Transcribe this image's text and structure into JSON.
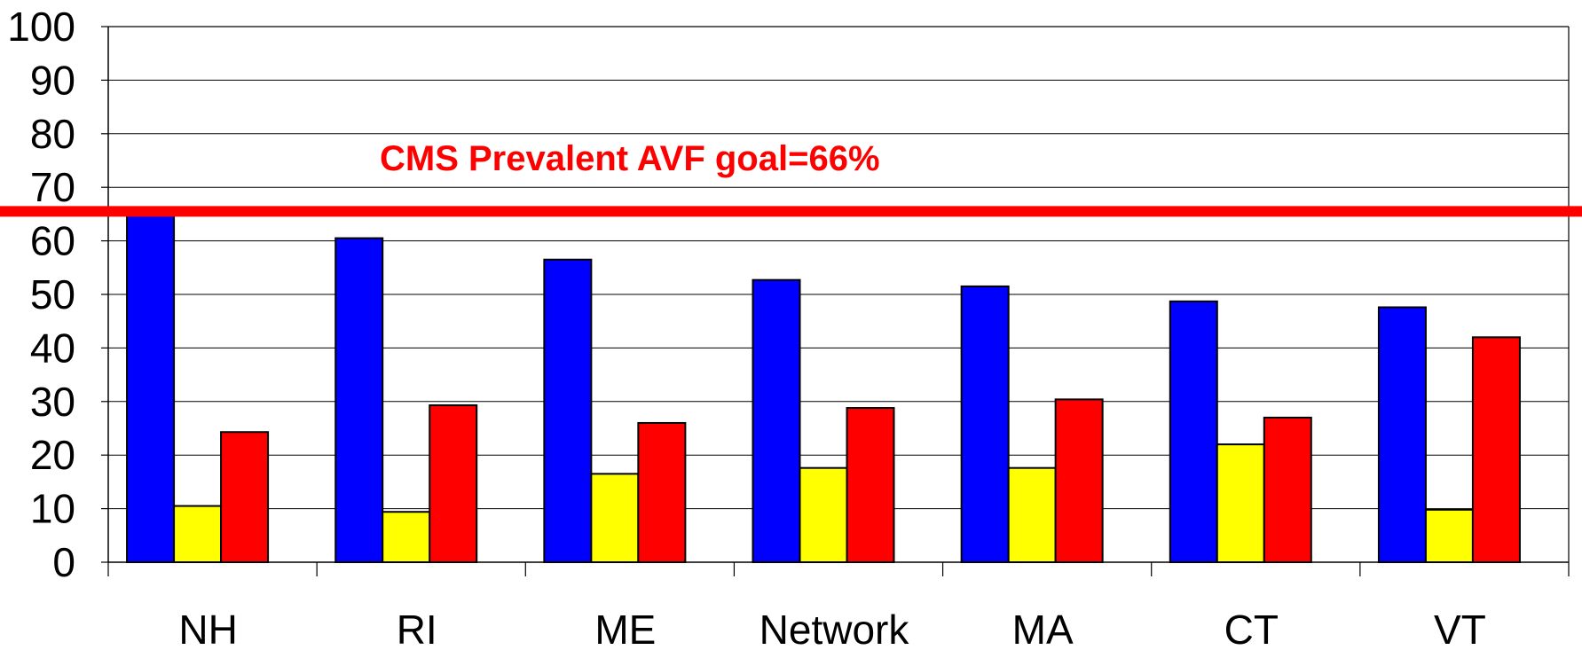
{
  "chart_data": {
    "type": "bar",
    "categories": [
      "NH",
      "RI",
      "ME",
      "Network",
      "MA",
      "CT",
      "VT"
    ],
    "series": [
      {
        "color": "#0000ff",
        "values": [
          65,
          60.5,
          56.5,
          52.7,
          51.5,
          48.7,
          47.6
        ]
      },
      {
        "color": "#ffff00",
        "values": [
          10.5,
          9.4,
          16.5,
          17.6,
          17.6,
          22,
          9.8
        ]
      },
      {
        "color": "#ff0000",
        "values": [
          24.3,
          29.3,
          26,
          28.8,
          30.4,
          27,
          42
        ]
      }
    ],
    "ylim": [
      0,
      100
    ],
    "yticks": [
      0,
      10,
      20,
      30,
      40,
      50,
      60,
      70,
      80,
      90,
      100
    ],
    "grid": true,
    "reference_line": {
      "value": 66,
      "label": "CMS Prevalent AVF goal=66%",
      "color": "#ff0000"
    }
  }
}
